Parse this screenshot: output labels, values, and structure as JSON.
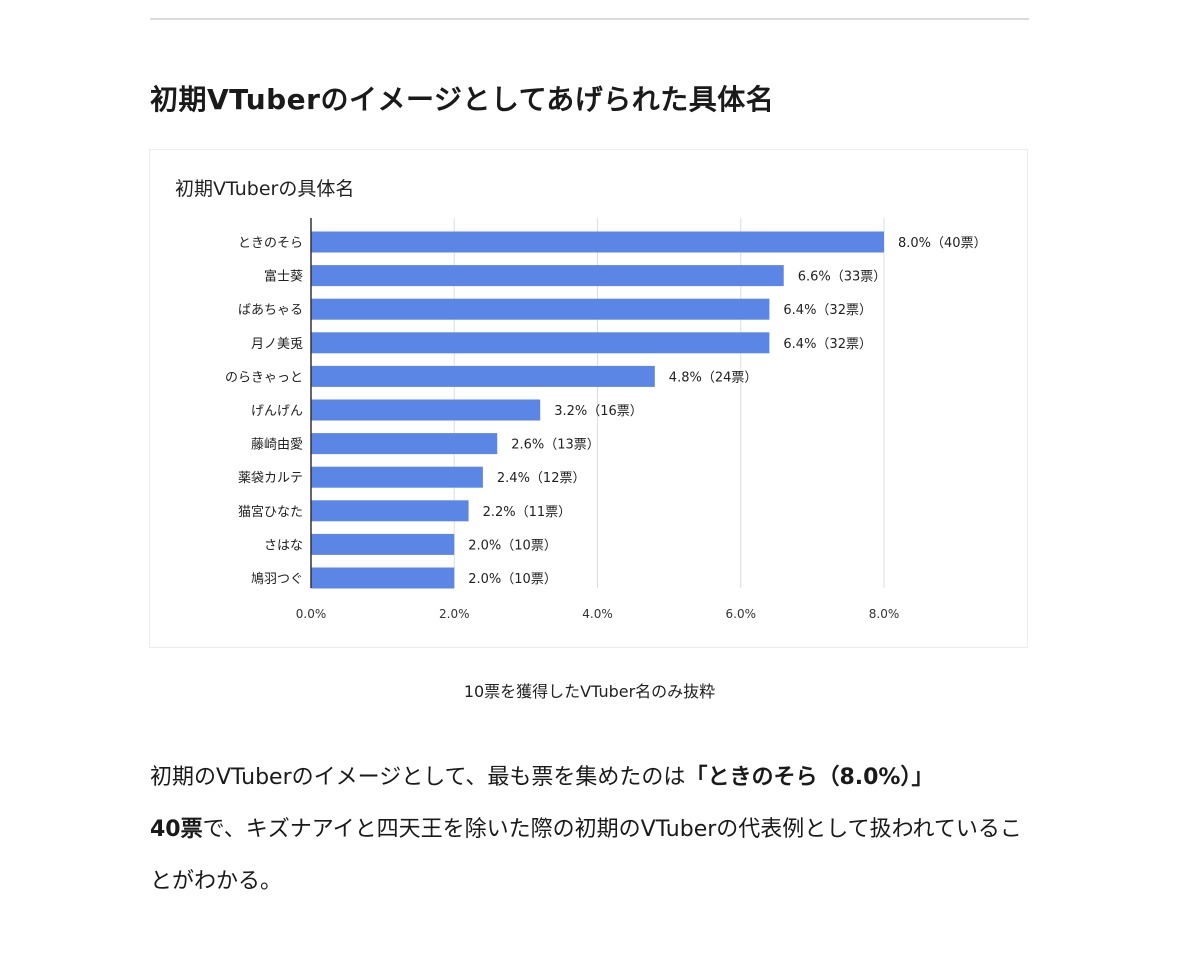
{
  "article": {
    "heading": "初期VTuberのイメージとしてあげられた具体名",
    "caption": "10票を獲得したVTuber名のみ抜粋",
    "paragraph": {
      "before": "初期のVTuberのイメージとして、最も票を集めたのは",
      "bold1": "「ときのそら（8.0%）」",
      "bold2": "40票",
      "after": "で、キズナアイと四天王を除いた際の初期のVTuberの代表例として扱われていることがわかる。"
    }
  },
  "chart_data": {
    "type": "bar",
    "orientation": "horizontal",
    "title": "初期VTuberの具体名",
    "categories": [
      "ときのそら",
      "富士葵",
      "ばあちゃる",
      "月ノ美兎",
      "のらきゃっと",
      "げんげん",
      "藤崎由愛",
      "薬袋カルテ",
      "猫宮ひなた",
      "さはな",
      "鳩羽つぐ"
    ],
    "values": [
      8.0,
      6.6,
      6.4,
      6.4,
      4.8,
      3.2,
      2.6,
      2.4,
      2.2,
      2.0,
      2.0
    ],
    "data_labels": [
      "8.0%（40票）",
      "6.6%（33票）",
      "6.4%（32票）",
      "6.4%（32票）",
      "4.8%（24票）",
      "3.2%（16票）",
      "2.6%（13票）",
      "2.4%（12票）",
      "2.2%（11票）",
      "2.0%（10票）",
      "2.0%（10票）"
    ],
    "xlim": [
      0,
      8
    ],
    "x_ticks": [
      "0.0%",
      "2.0%",
      "4.0%",
      "6.0%",
      "8.0%"
    ],
    "grid": true,
    "bar_color": "#5b86e5"
  }
}
